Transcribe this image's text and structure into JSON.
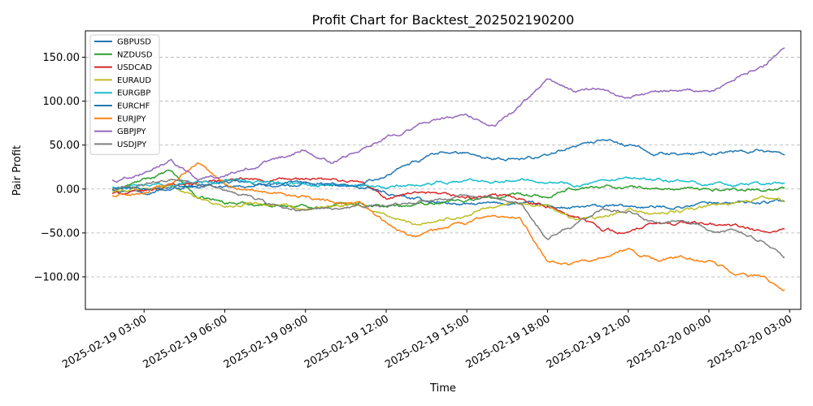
{
  "chart_data": {
    "type": "line",
    "title": "Profit Chart for Backtest_202502190200",
    "xlabel": "Time",
    "ylabel": "Pair Profit",
    "x_range": [
      "2025-02-19 01:49",
      "2025-02-20 02:49"
    ],
    "xlim": [
      "2025-02-19 00:49",
      "2025-02-20 03:25"
    ],
    "ylim": [
      -137,
      180
    ],
    "x_ticks": [
      "2025-02-19 03:00",
      "2025-02-19 06:00",
      "2025-02-19 09:00",
      "2025-02-19 12:00",
      "2025-02-19 15:00",
      "2025-02-19 18:00",
      "2025-02-19 21:00",
      "2025-02-20 00:00",
      "2025-02-20 03:00"
    ],
    "y_ticks": [
      "−100.00",
      "−50.00",
      "0.00",
      "50.00",
      "100.00",
      "150.00"
    ],
    "y_tick_values": [
      -100,
      -50,
      0,
      50,
      100,
      150
    ],
    "grid": "horizontal-dashed",
    "legend_position": "top-left",
    "x_time_points": [
      "2025-02-19 02:00",
      "2025-02-19 03:00",
      "2025-02-19 04:00",
      "2025-02-19 05:00",
      "2025-02-19 06:00",
      "2025-02-19 07:00",
      "2025-02-19 08:00",
      "2025-02-19 09:00",
      "2025-02-19 10:00",
      "2025-02-19 11:00",
      "2025-02-19 12:00",
      "2025-02-19 13:00",
      "2025-02-19 14:00",
      "2025-02-19 15:00",
      "2025-02-19 16:00",
      "2025-02-19 17:00",
      "2025-02-19 18:00",
      "2025-02-19 19:00",
      "2025-02-19 20:00",
      "2025-02-19 21:00",
      "2025-02-19 22:00",
      "2025-02-19 23:00",
      "2025-02-20 00:00",
      "2025-02-20 01:00",
      "2025-02-20 02:00",
      "2025-02-20 02:45"
    ],
    "series": [
      {
        "name": "GBPUSD",
        "color": "#1f77b4",
        "values": [
          0,
          -2,
          2,
          5,
          8,
          6,
          4,
          5,
          3,
          2,
          -5,
          -12,
          -15,
          -18,
          -17,
          -16,
          -20,
          -22,
          -20,
          -20,
          -21,
          -20,
          -15,
          -16,
          -15,
          -14
        ]
      },
      {
        "name": "NZDUSD",
        "color": "#2ca02c",
        "values": [
          0,
          10,
          20,
          -10,
          -15,
          -17,
          -18,
          -20,
          -18,
          -15,
          -20,
          -18,
          -15,
          -12,
          -10,
          -8,
          -10,
          0,
          3,
          2,
          0,
          0,
          -1,
          0,
          0,
          0
        ]
      },
      {
        "name": "USDCAD",
        "color": "#d62728",
        "values": [
          -5,
          -3,
          5,
          8,
          10,
          10,
          10,
          11,
          10,
          8,
          -10,
          -5,
          -8,
          -10,
          -8,
          -10,
          -20,
          -30,
          -45,
          -50,
          -40,
          -38,
          -40,
          -42,
          -50,
          -48
        ]
      },
      {
        "name": "EURAUD",
        "color": "#bcbd22",
        "values": [
          -3,
          0,
          5,
          -10,
          -20,
          -15,
          -18,
          -25,
          -20,
          -18,
          -30,
          -40,
          -35,
          -30,
          -20,
          -15,
          -20,
          -35,
          -33,
          -25,
          -28,
          -25,
          -20,
          -15,
          -10,
          -12
        ]
      },
      {
        "name": "EURGBP",
        "color": "#17becf",
        "values": [
          2,
          3,
          5,
          8,
          10,
          9,
          8,
          7,
          6,
          5,
          0,
          5,
          8,
          10,
          10,
          12,
          10,
          5,
          7,
          10,
          10,
          8,
          6,
          5,
          6,
          6
        ]
      },
      {
        "name": "EURCHF",
        "color": "#1f77b4",
        "values": [
          0,
          0,
          0,
          2,
          3,
          4,
          5,
          5,
          6,
          5,
          15,
          30,
          40,
          42,
          35,
          35,
          38,
          50,
          55,
          50,
          40,
          40,
          40,
          42,
          44,
          40
        ]
      },
      {
        "name": "EURJPY",
        "color": "#ff7f0e",
        "values": [
          -8,
          -5,
          5,
          30,
          5,
          0,
          -3,
          -10,
          -15,
          -15,
          -40,
          -55,
          -45,
          -40,
          -30,
          -35,
          -80,
          -85,
          -80,
          -70,
          -80,
          -78,
          -82,
          -95,
          -100,
          -118
        ]
      },
      {
        "name": "GBPJPY",
        "color": "#9467bd",
        "values": [
          10,
          20,
          35,
          10,
          15,
          25,
          35,
          45,
          30,
          45,
          60,
          70,
          80,
          85,
          70,
          95,
          125,
          110,
          115,
          102,
          110,
          112,
          110,
          125,
          140,
          160
        ]
      },
      {
        "name": "USDJPY",
        "color": "#7f7f7f",
        "values": [
          0,
          5,
          10,
          5,
          0,
          -10,
          -20,
          -25,
          -22,
          -20,
          -20,
          -15,
          -10,
          -8,
          -10,
          -15,
          -55,
          -40,
          -25,
          -25,
          -40,
          -35,
          -45,
          -48,
          -60,
          -78
        ]
      }
    ]
  }
}
